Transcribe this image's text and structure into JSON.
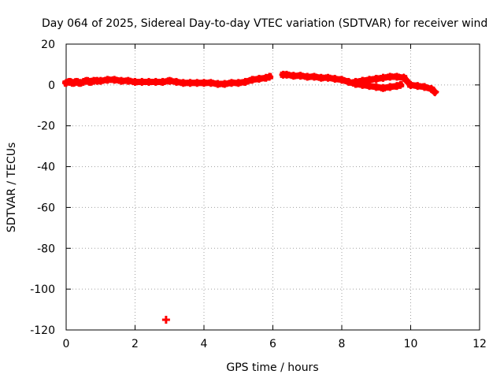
{
  "chart_data": {
    "type": "scatter",
    "title": "Day 064 of 2025, Sidereal Day-to-day VTEC variation (SDTVAR) for receiver wind",
    "xlabel": "GPS time / hours",
    "ylabel": "SDTVAR / TECUs",
    "xlim": [
      0,
      12
    ],
    "ylim": [
      -120,
      20
    ],
    "xticks": [
      "0",
      "2",
      "4",
      "6",
      "8",
      "10",
      "12"
    ],
    "yticks": [
      "20",
      "0",
      "-20",
      "-40",
      "-60",
      "-80",
      "-100",
      "-120"
    ],
    "grid": true,
    "marker_color": "#ff0000",
    "series": [
      {
        "x": [
          0.0,
          0.1,
          0.2,
          0.3,
          0.4,
          0.5,
          0.6,
          0.7,
          0.8,
          0.9,
          1.0,
          1.2,
          1.4,
          1.6,
          1.8,
          2.0,
          2.2,
          2.4,
          2.6,
          2.8,
          3.0,
          3.2,
          3.4,
          3.6,
          3.8,
          4.0,
          4.2,
          4.4,
          4.6,
          4.8,
          5.0,
          5.2,
          5.4,
          5.6,
          5.8,
          5.9,
          6.3,
          6.4,
          6.6,
          6.8,
          7.0,
          7.2,
          7.4,
          7.6,
          7.8,
          8.0,
          8.2,
          8.4,
          8.6,
          8.8,
          9.0,
          9.2,
          9.4,
          9.6,
          9.7,
          8.4,
          8.6,
          8.8,
          9.0,
          9.2,
          8.6,
          8.8,
          9.0,
          9.2,
          9.4,
          9.6,
          9.8,
          10.0,
          10.2,
          10.4,
          10.6,
          10.7,
          2.9
        ],
        "y": [
          1,
          1.5,
          1,
          1.5,
          1,
          1.5,
          2,
          1.5,
          2,
          2,
          2,
          2.5,
          2.5,
          2,
          2,
          1.5,
          1.5,
          1.5,
          1.5,
          1.5,
          2,
          1.5,
          1,
          1,
          1,
          1,
          1,
          0.5,
          0.5,
          1,
          1,
          1.5,
          2.5,
          3,
          3.5,
          4,
          5,
          5,
          4.5,
          4.5,
          4,
          4,
          3.5,
          3.5,
          3,
          2.5,
          1.5,
          0.5,
          0,
          -0.5,
          -1,
          -1.5,
          -1,
          -0.5,
          0,
          1.5,
          2,
          2.5,
          3,
          3.5,
          2,
          2.5,
          3,
          3.5,
          4,
          4,
          3.5,
          0,
          -0.5,
          -1,
          -2,
          -3.5,
          -115
        ]
      }
    ]
  }
}
